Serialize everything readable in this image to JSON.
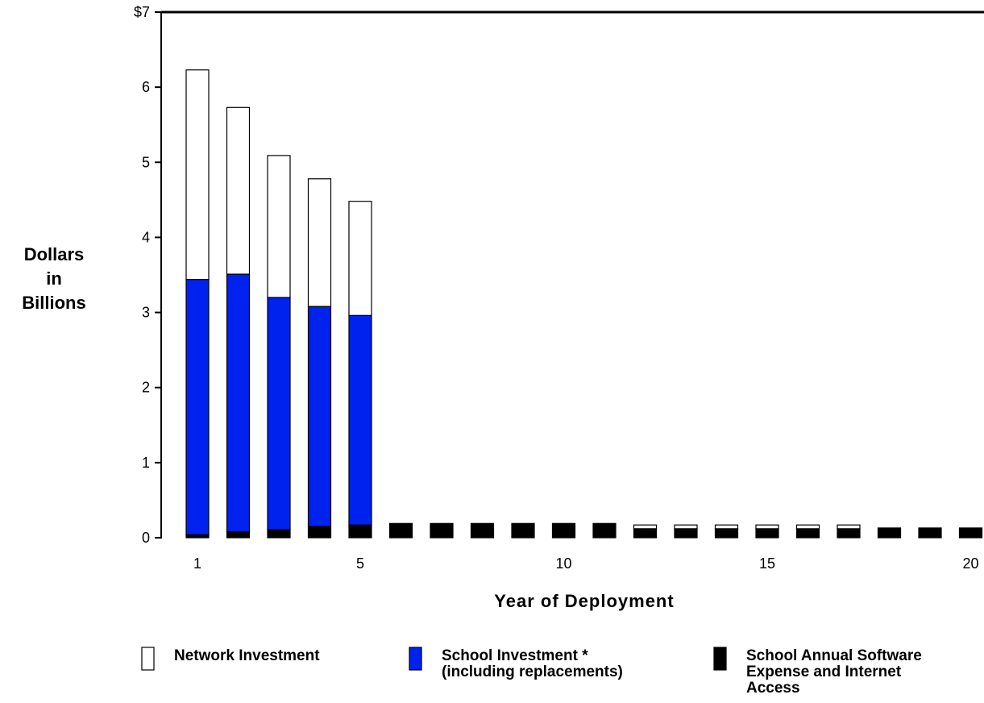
{
  "chart_data": {
    "type": "bar",
    "stacked": true,
    "title": "",
    "xlabel": "Year of Deployment",
    "ylabel_lines": [
      "Dollars",
      "in",
      "Billions"
    ],
    "x": [
      1,
      2,
      3,
      4,
      5,
      6,
      7,
      8,
      9,
      10,
      11,
      12,
      13,
      14,
      15,
      16,
      17,
      18,
      19,
      20
    ],
    "x_tick_labels": [
      {
        "value": 1,
        "label": "1"
      },
      {
        "value": 5,
        "label": "5"
      },
      {
        "value": 10,
        "label": "10"
      },
      {
        "value": 15,
        "label": "15"
      },
      {
        "value": 20,
        "label": "20"
      }
    ],
    "y_tick_labels": [
      {
        "value": 0,
        "label": "0"
      },
      {
        "value": 1,
        "label": "1"
      },
      {
        "value": 2,
        "label": "2"
      },
      {
        "value": 3,
        "label": "3"
      },
      {
        "value": 4,
        "label": "4"
      },
      {
        "value": 5,
        "label": "5"
      },
      {
        "value": 6,
        "label": "6"
      },
      {
        "value": 7,
        "label": "$7"
      }
    ],
    "ylim": [
      0,
      7
    ],
    "xlim": [
      0.5,
      20.5
    ],
    "grid": false,
    "legend_position": "bottom",
    "series": [
      {
        "name": "School Annual Software Expense and Internet Access",
        "legend_lines": [
          "School Annual Software",
          "Expense and Internet",
          "Access"
        ],
        "color": "#000000",
        "values": [
          0.04,
          0.08,
          0.11,
          0.15,
          0.17,
          0.19,
          0.19,
          0.19,
          0.19,
          0.19,
          0.19,
          0.12,
          0.12,
          0.12,
          0.12,
          0.12,
          0.12,
          0.13,
          0.13,
          0.13
        ]
      },
      {
        "name": "School Investment * (including replacements)",
        "legend_lines": [
          "School Investment *",
          "(including replacements)"
        ],
        "color": "#0022ee",
        "values": [
          3.4,
          3.43,
          3.09,
          2.93,
          2.79,
          0,
          0,
          0,
          0,
          0,
          0,
          0,
          0,
          0,
          0,
          0,
          0,
          0,
          0,
          0
        ]
      },
      {
        "name": "Network Investment",
        "legend_lines": [
          "Network Investment"
        ],
        "color": "#ffffff",
        "values": [
          2.79,
          2.22,
          1.89,
          1.7,
          1.52,
          0,
          0,
          0,
          0,
          0,
          0,
          0.05,
          0.05,
          0.05,
          0.05,
          0.05,
          0.05,
          0,
          0,
          0
        ]
      }
    ]
  }
}
